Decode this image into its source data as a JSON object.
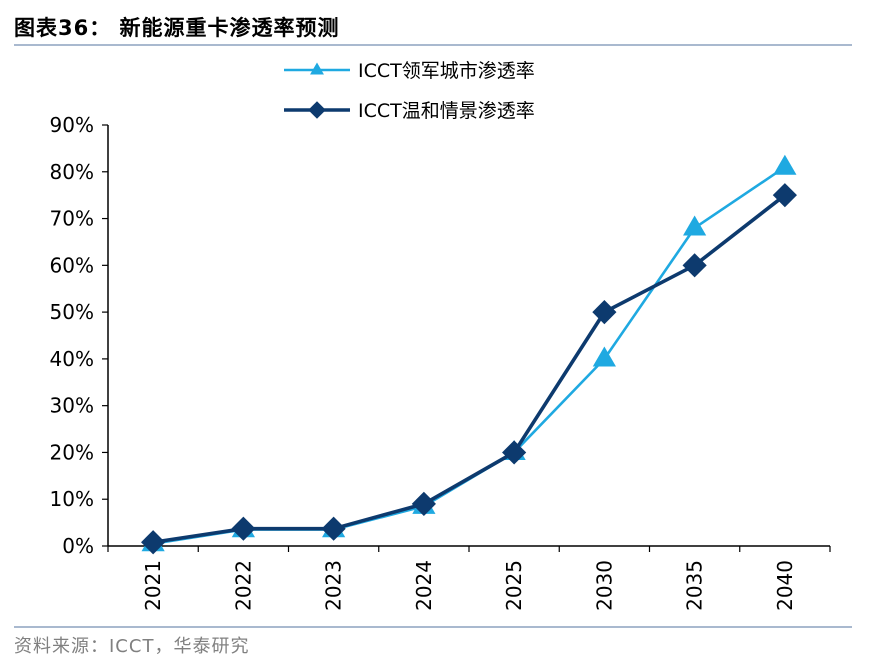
{
  "figure": {
    "title": "图表36：  新能源重卡渗透率预测",
    "source": "资料来源：ICCT，华泰研究"
  },
  "chart_data": {
    "type": "line",
    "title": "",
    "xlabel": "",
    "ylabel": "",
    "categories": [
      "2021",
      "2022",
      "2023",
      "2024",
      "2025",
      "2030",
      "2035",
      "2040"
    ],
    "ylim": [
      0,
      90
    ],
    "yticks": [
      "0%",
      "10%",
      "20%",
      "30%",
      "40%",
      "50%",
      "60%",
      "70%",
      "80%",
      "90%"
    ],
    "grid": false,
    "legend": "top",
    "series": [
      {
        "name": "ICCT领军城市渗透率",
        "values": [
          0.5,
          3.5,
          3.5,
          8.5,
          20,
          40,
          68,
          81
        ],
        "color": "#1fa9e1",
        "marker": "triangle"
      },
      {
        "name": "ICCT温和情景渗透率",
        "values": [
          0.8,
          3.7,
          3.7,
          9,
          20,
          50,
          60,
          75
        ],
        "color": "#0d3a6e",
        "marker": "diamond"
      }
    ]
  }
}
